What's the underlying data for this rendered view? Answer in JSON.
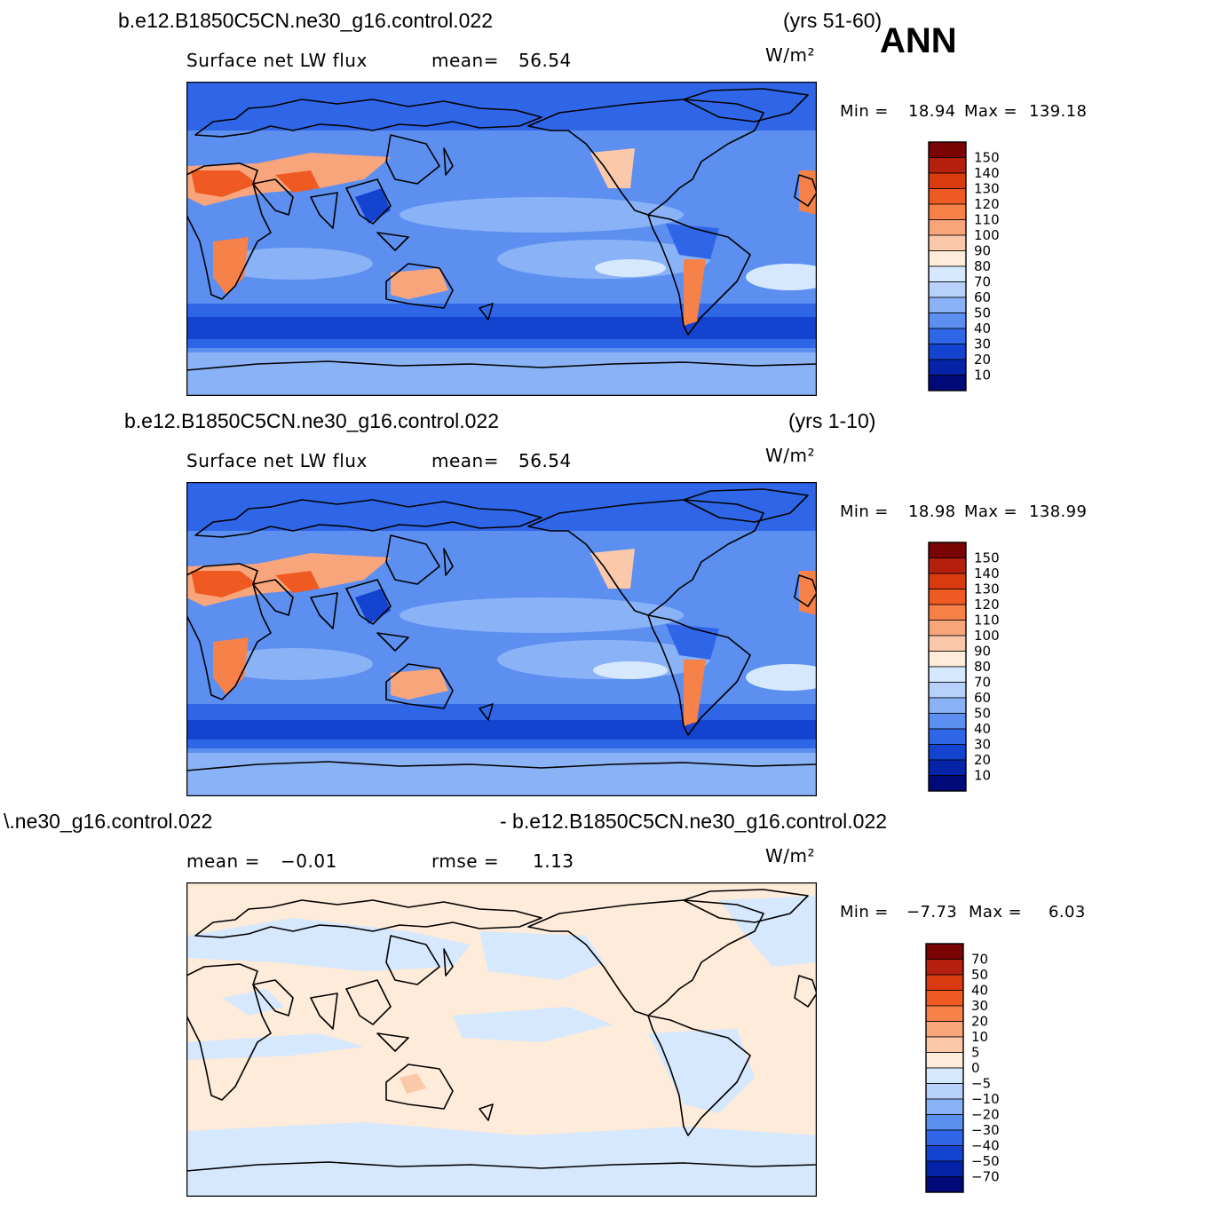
{
  "season": "ANN",
  "units": "W/m²",
  "panels": [
    {
      "case": "b.e12.B1850C5CN.ne30_g16.control.022",
      "years": "(yrs 51-60)",
      "title": "Surface net LW flux",
      "stat1_label": "mean=",
      "stat1_value": "56.54",
      "stat2_label": "",
      "stat2_value": "",
      "min_label": "Min  =",
      "min_value": "18.94",
      "max_label": "Max  =",
      "max_value": "139.18"
    },
    {
      "case": "b.e12.B1850C5CN.ne30_g16.control.022",
      "years": "(yrs 1-10)",
      "title": "Surface net LW flux",
      "stat1_label": "mean=",
      "stat1_value": "56.54",
      "stat2_label": "",
      "stat2_value": "",
      "min_label": "Min  =",
      "min_value": "18.98",
      "max_label": "Max  =",
      "max_value": "138.99"
    },
    {
      "case": "\\.ne30_g16.control.022",
      "years": "- b.e12.B1850C5CN.ne30_g16.control.022",
      "title": "",
      "stat1_label": "mean  =",
      "stat1_value": "−0.01",
      "stat2_label": "rmse  =",
      "stat2_value": "1.13",
      "min_label": "Min  =",
      "min_value": "−7.73",
      "max_label": "Max  =",
      "max_value": "6.03"
    }
  ],
  "colorbar_abs": {
    "labels": [
      "150",
      "140",
      "130",
      "120",
      "110",
      "100",
      "90",
      "80",
      "70",
      "60",
      "50",
      "40",
      "30",
      "20",
      "10"
    ],
    "colors": [
      "#7a0403",
      "#b5200e",
      "#d93a10",
      "#ee5a22",
      "#f6824a",
      "#f9a57c",
      "#fcc8aa",
      "#feebd9",
      "#d6e8fd",
      "#b7d1fb",
      "#8ab2f7",
      "#5c8ff0",
      "#2f66e8",
      "#1443cf",
      "#0423a6",
      "#000a78"
    ]
  },
  "colorbar_diff": {
    "labels": [
      "70",
      "50",
      "40",
      "30",
      "20",
      "10",
      "5",
      "0",
      "−5",
      "−10",
      "−20",
      "−30",
      "−40",
      "−50",
      "−70"
    ],
    "colors": [
      "#7a0403",
      "#b5200e",
      "#d93a10",
      "#ee5a22",
      "#f6824a",
      "#f9a57c",
      "#fcc8aa",
      "#feebd9",
      "#d6e8fd",
      "#b7d1fb",
      "#8ab2f7",
      "#5c8ff0",
      "#2f66e8",
      "#1443cf",
      "#0423a6",
      "#000a78"
    ]
  }
}
